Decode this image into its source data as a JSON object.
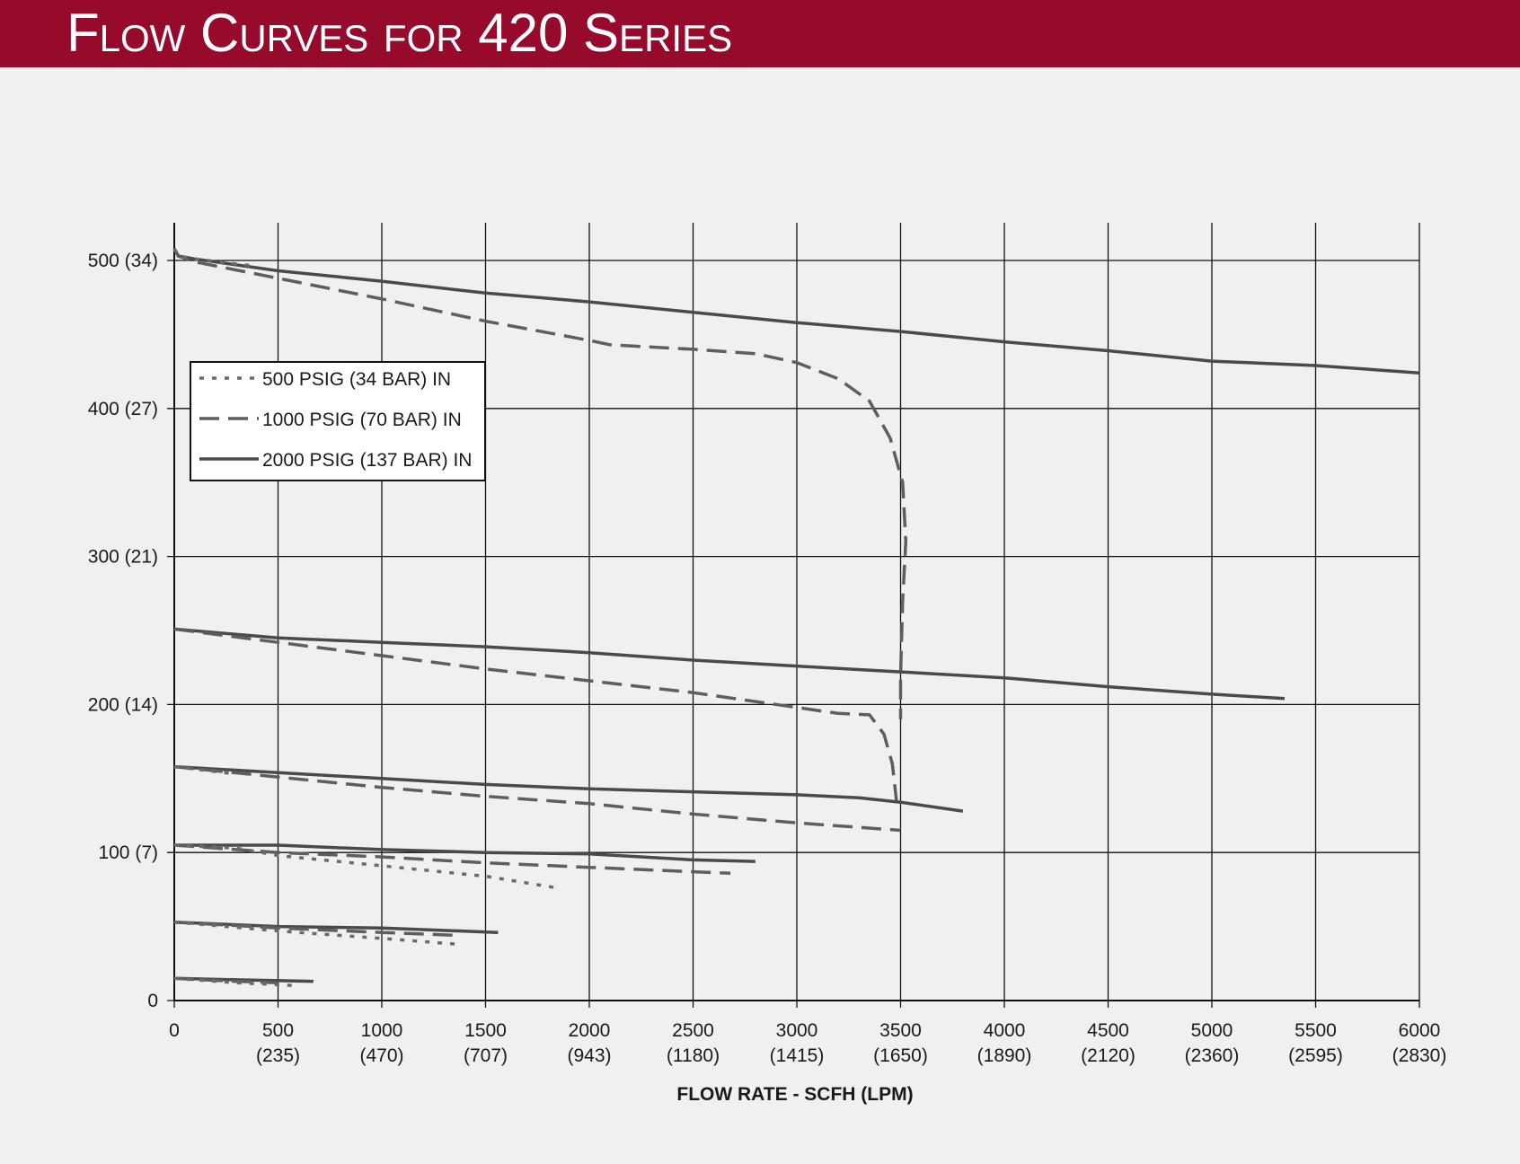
{
  "header": {
    "title": "Flow Curves for 420 Series",
    "background": "#960a2c"
  },
  "chart_data": {
    "type": "line",
    "title": "Flow Curves for 420 Series",
    "xlabel": "FLOW RATE - SCFH (LPM)",
    "ylabel": "",
    "xlim": [
      0,
      6000
    ],
    "ylim": [
      0,
      500
    ],
    "grid": true,
    "legend_position": "upper-left",
    "x_ticks": [
      {
        "value": 0,
        "label": "0",
        "sub": ""
      },
      {
        "value": 500,
        "label": "500",
        "sub": "(235)"
      },
      {
        "value": 1000,
        "label": "1000",
        "sub": "(470)"
      },
      {
        "value": 1500,
        "label": "1500",
        "sub": "(707)"
      },
      {
        "value": 2000,
        "label": "2000",
        "sub": "(943)"
      },
      {
        "value": 2500,
        "label": "2500",
        "sub": "(1180)"
      },
      {
        "value": 3000,
        "label": "3000",
        "sub": "(1415)"
      },
      {
        "value": 3500,
        "label": "3500",
        "sub": "(1650)"
      },
      {
        "value": 4000,
        "label": "4000",
        "sub": "(1890)"
      },
      {
        "value": 4500,
        "label": "4500",
        "sub": "(2120)"
      },
      {
        "value": 5000,
        "label": "5000",
        "sub": "(2360)"
      },
      {
        "value": 5500,
        "label": "5500",
        "sub": "(2595)"
      },
      {
        "value": 6000,
        "label": "6000",
        "sub": "(2830)"
      }
    ],
    "y_ticks": [
      {
        "value": 0,
        "label": "0"
      },
      {
        "value": 100,
        "label": "100 (7)"
      },
      {
        "value": 200,
        "label": "200 (14)"
      },
      {
        "value": 300,
        "label": "300 (21)"
      },
      {
        "value": 400,
        "label": "400 (27)"
      },
      {
        "value": 500,
        "label": "500 (34)"
      }
    ],
    "legend": [
      {
        "name": "500 PSIG (34 BAR) IN",
        "style": "dotted"
      },
      {
        "name": "1000 PSIG (70 BAR) IN",
        "style": "dashed"
      },
      {
        "name": "2000 PSIG (137 BAR) IN",
        "style": "solid"
      }
    ],
    "series": [
      {
        "style": "solid",
        "points": [
          [
            0,
            508
          ],
          [
            20,
            503
          ],
          [
            100,
            501
          ],
          [
            500,
            493
          ],
          [
            1000,
            486
          ],
          [
            1500,
            478
          ],
          [
            2000,
            472
          ],
          [
            2500,
            465
          ],
          [
            3000,
            458
          ],
          [
            3500,
            452
          ],
          [
            4000,
            445
          ],
          [
            4500,
            439
          ],
          [
            5000,
            432
          ],
          [
            5500,
            429
          ],
          [
            6000,
            424
          ]
        ]
      },
      {
        "style": "dashed",
        "points": [
          [
            0,
            508
          ],
          [
            20,
            503
          ],
          [
            100,
            499
          ],
          [
            500,
            488
          ],
          [
            1000,
            474
          ],
          [
            1500,
            459
          ],
          [
            2000,
            446
          ],
          [
            2100,
            443
          ],
          [
            2500,
            440
          ],
          [
            2800,
            437
          ],
          [
            3000,
            431
          ],
          [
            3200,
            420
          ],
          [
            3350,
            405
          ],
          [
            3450,
            380
          ],
          [
            3510,
            350
          ],
          [
            3525,
            310
          ],
          [
            3510,
            270
          ],
          [
            3500,
            220
          ],
          [
            3500,
            190
          ]
        ]
      },
      {
        "style": "dotted",
        "points": [
          [
            0,
            508
          ],
          [
            20,
            503
          ],
          [
            100,
            501
          ],
          [
            400,
            496
          ]
        ]
      },
      {
        "style": "solid",
        "points": [
          [
            0,
            251
          ],
          [
            500,
            245
          ],
          [
            1000,
            242
          ],
          [
            1500,
            239
          ],
          [
            2000,
            235
          ],
          [
            2500,
            230
          ],
          [
            3000,
            226
          ],
          [
            3500,
            222
          ],
          [
            4000,
            218
          ],
          [
            4500,
            212
          ],
          [
            5000,
            207
          ],
          [
            5350,
            204
          ]
        ]
      },
      {
        "style": "dashed",
        "points": [
          [
            0,
            251
          ],
          [
            500,
            242
          ],
          [
            1000,
            233
          ],
          [
            1500,
            224
          ],
          [
            2000,
            216
          ],
          [
            2500,
            208
          ],
          [
            3000,
            198
          ],
          [
            3200,
            194
          ],
          [
            3350,
            193
          ],
          [
            3420,
            180
          ],
          [
            3460,
            160
          ],
          [
            3480,
            135
          ]
        ]
      },
      {
        "style": "solid",
        "points": [
          [
            0,
            158
          ],
          [
            500,
            154
          ],
          [
            1000,
            150
          ],
          [
            1500,
            146
          ],
          [
            2000,
            143
          ],
          [
            2500,
            141
          ],
          [
            3000,
            139
          ],
          [
            3300,
            137
          ],
          [
            3500,
            134
          ],
          [
            3800,
            128
          ]
        ]
      },
      {
        "style": "dashed",
        "points": [
          [
            0,
            158
          ],
          [
            500,
            151
          ],
          [
            1000,
            144
          ],
          [
            1500,
            138
          ],
          [
            2000,
            133
          ],
          [
            2500,
            126
          ],
          [
            3000,
            120
          ],
          [
            3300,
            117
          ],
          [
            3500,
            115
          ]
        ]
      },
      {
        "style": "dotted",
        "points": [
          [
            0,
            158
          ],
          [
            300,
            153
          ]
        ]
      },
      {
        "style": "solid",
        "points": [
          [
            0,
            105
          ],
          [
            500,
            105
          ],
          [
            1000,
            102
          ],
          [
            1500,
            100
          ],
          [
            2000,
            99
          ],
          [
            2500,
            95
          ],
          [
            2800,
            94
          ]
        ]
      },
      {
        "style": "dashed",
        "points": [
          [
            0,
            105
          ],
          [
            500,
            100
          ],
          [
            1000,
            97
          ],
          [
            1500,
            93
          ],
          [
            2000,
            90
          ],
          [
            2500,
            87
          ],
          [
            2680,
            86
          ]
        ]
      },
      {
        "style": "dotted",
        "points": [
          [
            0,
            105
          ],
          [
            300,
            103
          ],
          [
            500,
            98
          ],
          [
            1000,
            91
          ],
          [
            1500,
            84
          ],
          [
            1850,
            76
          ]
        ]
      },
      {
        "style": "solid",
        "points": [
          [
            0,
            53
          ],
          [
            500,
            50
          ],
          [
            1000,
            49
          ],
          [
            1560,
            46
          ]
        ]
      },
      {
        "style": "dashed",
        "points": [
          [
            0,
            53
          ],
          [
            500,
            49
          ],
          [
            1000,
            46
          ],
          [
            1370,
            44
          ]
        ]
      },
      {
        "style": "dotted",
        "points": [
          [
            0,
            53
          ],
          [
            500,
            47
          ],
          [
            1000,
            42
          ],
          [
            1370,
            38
          ]
        ]
      },
      {
        "style": "solid",
        "points": [
          [
            0,
            15
          ],
          [
            300,
            14
          ],
          [
            670,
            13
          ]
        ]
      },
      {
        "style": "dashed",
        "points": [
          [
            0,
            15
          ],
          [
            300,
            13
          ],
          [
            500,
            12
          ]
        ]
      },
      {
        "style": "dotted",
        "points": [
          [
            0,
            15
          ],
          [
            300,
            12
          ],
          [
            600,
            10
          ]
        ]
      }
    ]
  }
}
